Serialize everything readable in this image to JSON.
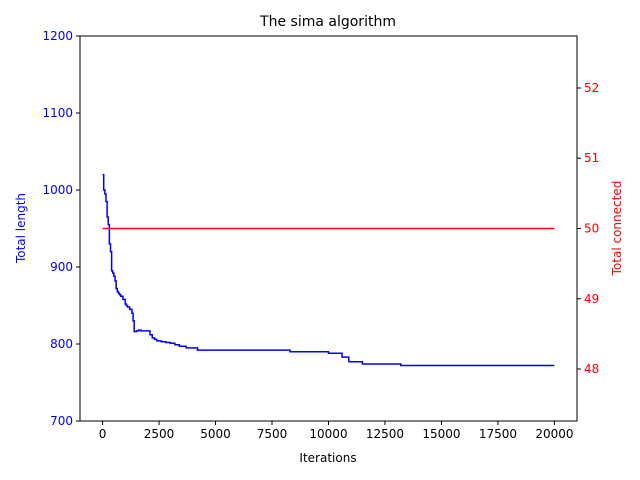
{
  "chart_data": {
    "type": "line",
    "title": "The sima algorithm",
    "xlabel": "Iterations",
    "xlim": [
      -1000,
      21000
    ],
    "x_ticks": [
      0,
      2500,
      5000,
      7500,
      10000,
      12500,
      15000,
      17500,
      20000
    ],
    "x_tick_labels": [
      "0",
      "2500",
      "5000",
      "7500",
      "10000",
      "12500",
      "15000",
      "17500",
      "20000"
    ],
    "y_left": {
      "label": "Total length",
      "color": "#0000ff",
      "ylim": [
        700,
        1200
      ],
      "ticks": [
        700,
        800,
        900,
        1000,
        1100,
        1200
      ],
      "tick_labels": [
        "700",
        "800",
        "900",
        "1000",
        "1100",
        "1200"
      ]
    },
    "y_right": {
      "label": "Total connected",
      "color": "#ff0000",
      "ylim": [
        47.26,
        52.74
      ],
      "ticks": [
        48,
        49,
        50,
        51,
        52
      ],
      "tick_labels": [
        "48",
        "49",
        "50",
        "51",
        "52"
      ]
    },
    "series": [
      {
        "axis": "left",
        "color": "#0000ff",
        "x": [
          0,
          50,
          100,
          150,
          200,
          250,
          300,
          350,
          400,
          450,
          500,
          550,
          600,
          650,
          700,
          750,
          800,
          900,
          1000,
          1050,
          1100,
          1200,
          1300,
          1350,
          1400,
          1500,
          1600,
          1700,
          2100,
          2200,
          2300,
          2400,
          2600,
          2800,
          3000,
          3200,
          3400,
          3700,
          4200,
          8300,
          10000,
          10600,
          10900,
          11500,
          13200,
          20000
        ],
        "y": [
          1020,
          1000,
          995,
          985,
          965,
          955,
          930,
          920,
          895,
          892,
          888,
          882,
          872,
          868,
          866,
          864,
          862,
          858,
          852,
          850,
          848,
          845,
          840,
          830,
          816,
          817,
          818,
          817,
          812,
          808,
          806,
          804,
          803,
          802,
          801,
          799,
          797,
          795,
          792,
          790,
          788,
          783,
          777,
          774,
          772,
          772
        ]
      },
      {
        "axis": "right",
        "color": "#ff0000",
        "x": [
          0,
          20000
        ],
        "y": [
          50,
          50
        ]
      }
    ]
  }
}
